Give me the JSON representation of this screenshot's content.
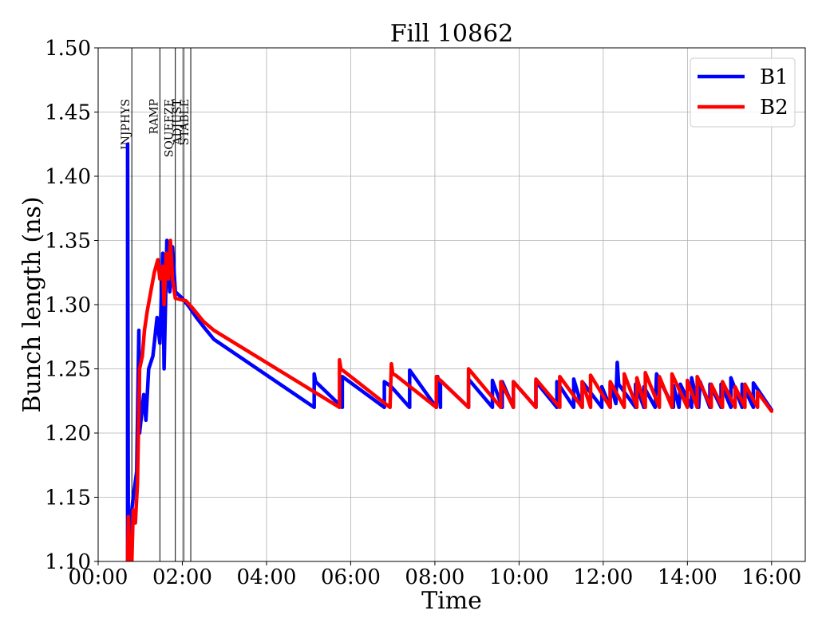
{
  "chart_data": {
    "type": "line",
    "title": "Fill 10862",
    "xlabel": "Time",
    "ylabel": "Bunch length (ns)",
    "xlim": [
      "00:00",
      "16:48"
    ],
    "ylim": [
      1.1,
      1.5
    ],
    "grid": true,
    "legend_position": "top-right",
    "x_ticks": [
      "00:00",
      "02:00",
      "04:00",
      "06:00",
      "08:00",
      "10:00",
      "12:00",
      "14:00",
      "16:00"
    ],
    "y_ticks": [
      "1.10",
      "1.15",
      "1.20",
      "1.25",
      "1.30",
      "1.35",
      "1.40",
      "1.45",
      "1.50"
    ],
    "phases": [
      {
        "label": "INJPHYS",
        "time": "00:48"
      },
      {
        "label": "RAMP",
        "time": "01:28"
      },
      {
        "label": "SQUEEZE",
        "time": "01:50"
      },
      {
        "label": "ADJUST",
        "time": "02:02"
      },
      {
        "label": "STABLE",
        "time": "02:12"
      }
    ],
    "series": [
      {
        "name": "B1",
        "color": "#0000ff",
        "points": [
          [
            "00:42",
            1.1
          ],
          [
            "00:42",
            1.425
          ],
          [
            "00:43",
            1.11
          ],
          [
            "00:46",
            1.13
          ],
          [
            "00:50",
            1.15
          ],
          [
            "00:55",
            1.17
          ],
          [
            "00:58",
            1.28
          ],
          [
            "00:59",
            1.2
          ],
          [
            "01:05",
            1.23
          ],
          [
            "01:08",
            1.21
          ],
          [
            "01:12",
            1.25
          ],
          [
            "01:18",
            1.26
          ],
          [
            "01:24",
            1.29
          ],
          [
            "01:28",
            1.27
          ],
          [
            "01:32",
            1.34
          ],
          [
            "01:34",
            1.25
          ],
          [
            "01:38",
            1.35
          ],
          [
            "01:42",
            1.31
          ],
          [
            "01:46",
            1.345
          ],
          [
            "01:50",
            1.31
          ],
          [
            "02:00",
            1.305
          ],
          [
            "02:10",
            1.298
          ],
          [
            "02:20",
            1.29
          ],
          [
            "02:30",
            1.283
          ],
          [
            "02:45",
            1.273
          ],
          [
            "05:08",
            1.22
          ],
          [
            "05:08",
            1.246
          ],
          [
            "05:10",
            1.24
          ],
          [
            "05:48",
            1.22
          ],
          [
            "05:48",
            1.244
          ],
          [
            "06:48",
            1.22
          ],
          [
            "06:48",
            1.24
          ],
          [
            "06:58",
            1.236
          ],
          [
            "07:24",
            1.22
          ],
          [
            "07:24",
            1.249
          ],
          [
            "08:02",
            1.22
          ],
          [
            "08:02",
            1.232
          ],
          [
            "08:04",
            1.244
          ],
          [
            "08:08",
            1.22
          ],
          [
            "08:08",
            1.241
          ],
          [
            "08:48",
            1.22
          ],
          [
            "08:48",
            1.242
          ],
          [
            "09:22",
            1.22
          ],
          [
            "09:22",
            1.241
          ],
          [
            "09:36",
            1.22
          ],
          [
            "09:36",
            1.24
          ],
          [
            "09:52",
            1.22
          ],
          [
            "09:52",
            1.24
          ],
          [
            "10:24",
            1.22
          ],
          [
            "10:24",
            1.24
          ],
          [
            "10:54",
            1.22
          ],
          [
            "10:54",
            1.24
          ],
          [
            "11:18",
            1.22
          ],
          [
            "11:18",
            1.242
          ],
          [
            "11:30",
            1.22
          ],
          [
            "11:30",
            1.24
          ],
          [
            "11:58",
            1.22
          ],
          [
            "11:58",
            1.236
          ],
          [
            "12:10",
            1.22
          ],
          [
            "12:10",
            1.238
          ],
          [
            "12:18",
            1.223
          ],
          [
            "12:20",
            1.255
          ],
          [
            "12:22",
            1.238
          ],
          [
            "12:46",
            1.22
          ],
          [
            "12:46",
            1.238
          ],
          [
            "12:58",
            1.22
          ],
          [
            "12:58",
            1.236
          ],
          [
            "13:14",
            1.22
          ],
          [
            "13:16",
            1.246
          ],
          [
            "13:40",
            1.22
          ],
          [
            "13:40",
            1.237
          ],
          [
            "13:48",
            1.22
          ],
          [
            "13:50",
            1.238
          ],
          [
            "14:06",
            1.22
          ],
          [
            "14:06",
            1.243
          ],
          [
            "14:16",
            1.22
          ],
          [
            "14:18",
            1.24
          ],
          [
            "14:32",
            1.22
          ],
          [
            "14:32",
            1.238
          ],
          [
            "14:48",
            1.22
          ],
          [
            "14:48",
            1.238
          ],
          [
            "15:02",
            1.22
          ],
          [
            "15:02",
            1.243
          ],
          [
            "15:18",
            1.22
          ],
          [
            "15:18",
            1.238
          ],
          [
            "15:34",
            1.22
          ],
          [
            "15:34",
            1.239
          ],
          [
            "16:00",
            1.218
          ]
        ]
      },
      {
        "name": "B2",
        "color": "#ff0000",
        "points": [
          [
            "00:42",
            1.1
          ],
          [
            "00:43",
            1.135
          ],
          [
            "00:45",
            1.1
          ],
          [
            "00:48",
            1.1
          ],
          [
            "00:50",
            1.14
          ],
          [
            "00:53",
            1.13
          ],
          [
            "00:56",
            1.16
          ],
          [
            "00:59",
            1.25
          ],
          [
            "01:03",
            1.26
          ],
          [
            "01:06",
            1.28
          ],
          [
            "01:10",
            1.295
          ],
          [
            "01:15",
            1.31
          ],
          [
            "01:20",
            1.325
          ],
          [
            "01:25",
            1.335
          ],
          [
            "01:28",
            1.32
          ],
          [
            "01:32",
            1.33
          ],
          [
            "01:34",
            1.3
          ],
          [
            "01:37",
            1.34
          ],
          [
            "01:40",
            1.32
          ],
          [
            "01:43",
            1.35
          ],
          [
            "01:46",
            1.32
          ],
          [
            "01:50",
            1.305
          ],
          [
            "02:05",
            1.303
          ],
          [
            "02:15",
            1.297
          ],
          [
            "02:30",
            1.287
          ],
          [
            "02:45",
            1.28
          ],
          [
            "05:44",
            1.22
          ],
          [
            "05:44",
            1.257
          ],
          [
            "05:46",
            1.25
          ],
          [
            "06:56",
            1.22
          ],
          [
            "06:58",
            1.254
          ],
          [
            "07:00",
            1.246
          ],
          [
            "07:04",
            1.245
          ],
          [
            "08:02",
            1.22
          ],
          [
            "08:02",
            1.244
          ],
          [
            "08:48",
            1.22
          ],
          [
            "08:48",
            1.25
          ],
          [
            "09:34",
            1.22
          ],
          [
            "09:34",
            1.24
          ],
          [
            "09:52",
            1.22
          ],
          [
            "09:52",
            1.24
          ],
          [
            "10:24",
            1.22
          ],
          [
            "10:24",
            1.242
          ],
          [
            "10:58",
            1.22
          ],
          [
            "10:58",
            1.244
          ],
          [
            "11:30",
            1.22
          ],
          [
            "11:30",
            1.24
          ],
          [
            "11:42",
            1.22
          ],
          [
            "11:42",
            1.245
          ],
          [
            "12:10",
            1.22
          ],
          [
            "12:10",
            1.24
          ],
          [
            "12:30",
            1.22
          ],
          [
            "12:30",
            1.246
          ],
          [
            "12:48",
            1.22
          ],
          [
            "12:48",
            1.243
          ],
          [
            "13:00",
            1.22
          ],
          [
            "13:00",
            1.247
          ],
          [
            "13:20",
            1.22
          ],
          [
            "13:20",
            1.244
          ],
          [
            "13:38",
            1.22
          ],
          [
            "13:38",
            1.246
          ],
          [
            "14:00",
            1.22
          ],
          [
            "14:00",
            1.241
          ],
          [
            "14:14",
            1.22
          ],
          [
            "14:14",
            1.244
          ],
          [
            "14:34",
            1.22
          ],
          [
            "14:34",
            1.238
          ],
          [
            "14:50",
            1.22
          ],
          [
            "14:50",
            1.24
          ],
          [
            "15:08",
            1.22
          ],
          [
            "15:08",
            1.236
          ],
          [
            "15:22",
            1.22
          ],
          [
            "15:22",
            1.238
          ],
          [
            "15:40",
            1.22
          ],
          [
            "15:40",
            1.232
          ],
          [
            "16:00",
            1.217
          ]
        ]
      }
    ]
  }
}
